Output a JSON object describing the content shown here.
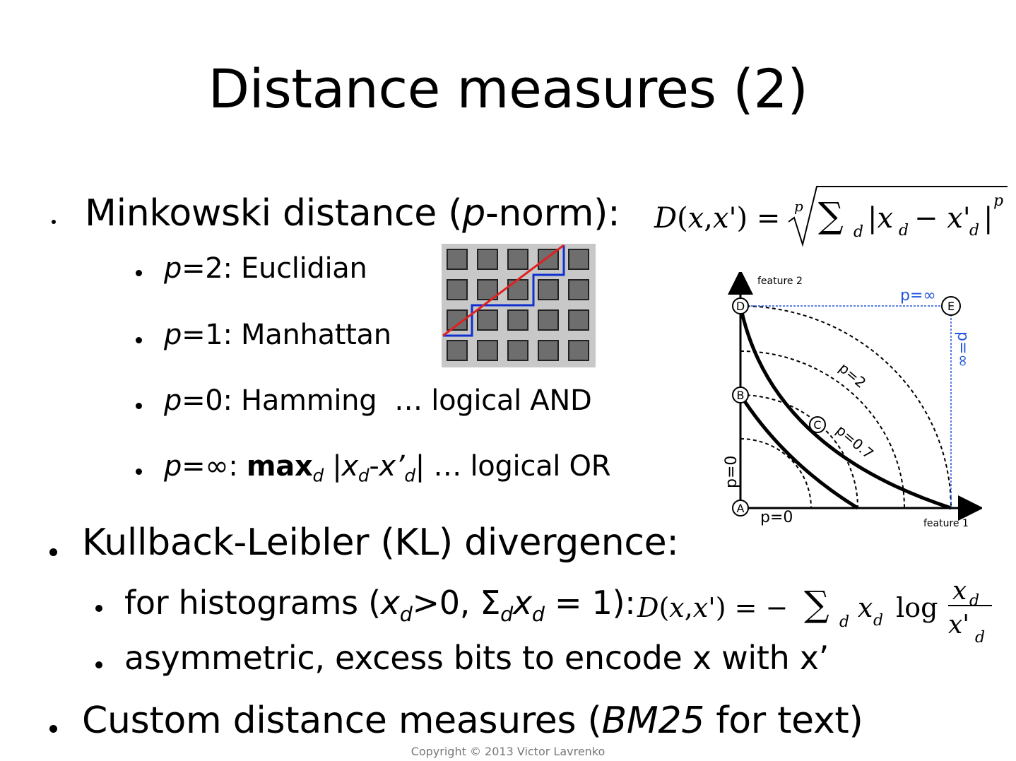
{
  "title": "Distance measures (2)",
  "minkowski": {
    "label_pre": "Minkowski distance (",
    "label_p": "p",
    "label_post": "-norm):",
    "formula_lhs": "D(x,x') =",
    "formula_root_index": "p",
    "formula_sigma": "∑",
    "formula_sub": "d",
    "formula_body": "|x",
    "formula_body2": " − x'",
    "formula_power": "p",
    "items": [
      {
        "p": "p",
        "rest": "=2: Euclidian"
      },
      {
        "p": "p",
        "rest": "=1: Manhattan"
      },
      {
        "p": "p",
        "rest": "=0: Hamming  … logical AND"
      },
      {
        "p": "p",
        "rest_a": "=∞: ",
        "bold": "max",
        "bold_sub": "d",
        "abs_a": " |",
        "x1": "x",
        "x1_sub": "d",
        "dash": "-",
        "x2": "x’",
        "x2_sub": "d",
        "abs_b": "|",
        "rest_b": " … logical OR"
      }
    ]
  },
  "diagram": {
    "axis_x": "feature 1",
    "axis_y": "feature 2",
    "labels": {
      "p_inf_top": "p=∞",
      "p_inf_side": "p=∞",
      "p2": "p=2",
      "p07": "p=0.7",
      "p0_bottom": "p=0",
      "p0_side": "p=0"
    },
    "points": [
      "A",
      "B",
      "C",
      "D",
      "E"
    ],
    "accent": "#2255dd"
  },
  "grid_figure": {
    "euclid_color": "#e02020",
    "manhattan_color": "#1030d0"
  },
  "kl": {
    "label": "Kullback-Leibler (KL) divergence:",
    "item1_a": "for histograms (",
    "item1_x": "x",
    "item1_sub": "d",
    "item1_b": ">0, Σ",
    "item1_sub2": "d",
    "item1_x2": "x",
    "item1_sub3": "d",
    "item1_c": " = 1):",
    "formula_lhs": "D(x,x') = −",
    "formula_sigma": "∑",
    "formula_sub": "d",
    "formula_mid": "x",
    "formula_mid_sub": "d",
    "formula_log": " log ",
    "frac_num": "x",
    "frac_num_sub": "d",
    "frac_den": "x'",
    "frac_den_sub": "d",
    "item2": "asymmetric, excess bits to encode x with x’"
  },
  "custom": {
    "label_a": "Custom distance measures (",
    "label_i": "BM25",
    "label_b": " for text)"
  },
  "footer": "Copyright © 2013 Victor Lavrenko"
}
